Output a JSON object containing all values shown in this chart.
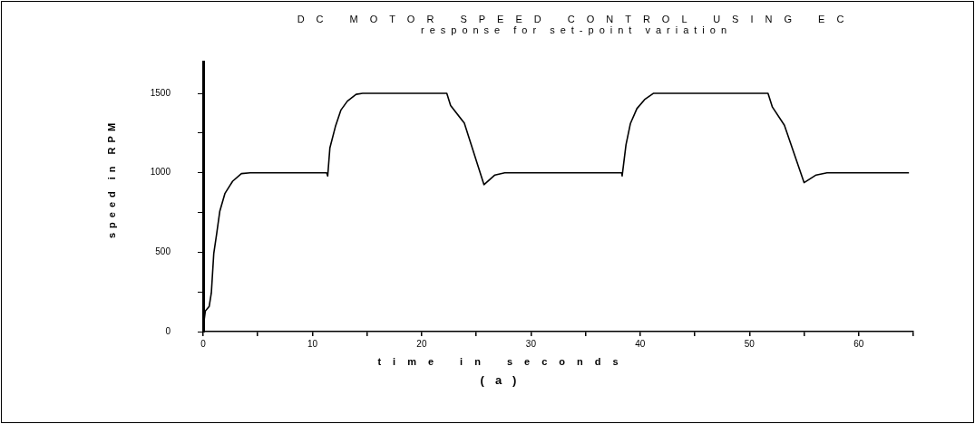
{
  "chart_data": {
    "type": "line",
    "title": "DC MOTOR SPEED CONTROL USING EC",
    "subtitle": "response for set-point variation",
    "xlabel": "time in seconds",
    "ylabel": "speed in RPM",
    "annotations": [
      "(a)"
    ],
    "xlim": [
      0,
      65
    ],
    "xticks": [
      0,
      {
        "value": 5,
        "label": null
      },
      10,
      {
        "value": 15,
        "label": null
      },
      20,
      {
        "value": 25,
        "label": null
      },
      30,
      {
        "value": 35,
        "label": null
      },
      40,
      {
        "value": 45,
        "label": null
      },
      50,
      {
        "value": 55,
        "label": null
      },
      60,
      {
        "value": 65,
        "label": null
      }
    ],
    "ylim": [
      0,
      1700
    ],
    "yticks": [
      0,
      {
        "value": 250,
        "label": null
      },
      500,
      {
        "value": 750,
        "label": null
      },
      1000,
      {
        "value": 1250,
        "label": null
      },
      1500
    ],
    "grid": false,
    "legend": false,
    "marker": "none",
    "line_style": "solid",
    "series": [
      {
        "color": "#000000",
        "x": [
          0,
          0.05,
          0.2,
          0.55,
          0.75,
          0.97,
          1.25,
          1.52,
          2.0,
          2.7,
          3.5,
          4.3,
          11.3,
          11.4,
          11.6,
          12.1,
          12.6,
          13.2,
          14.0,
          14.6,
          22.3,
          22.65,
          23.9,
          25.7,
          26.7,
          27.6,
          38.3,
          38.35,
          38.7,
          39.1,
          39.7,
          40.4,
          41.2,
          51.7,
          52.1,
          53.2,
          55.0,
          56.1,
          57.1,
          64.6
        ],
        "values": [
          0,
          50,
          130,
          158,
          244,
          491,
          623,
          757,
          871,
          947,
          995,
          1000,
          1000,
          980,
          1157,
          1290,
          1394,
          1451,
          1494,
          1500,
          1500,
          1423,
          1313,
          925,
          986,
          1000,
          1000,
          980,
          1176,
          1309,
          1404,
          1461,
          1500,
          1500,
          1414,
          1299,
          938,
          986,
          1000,
          1000
        ]
      }
    ]
  }
}
